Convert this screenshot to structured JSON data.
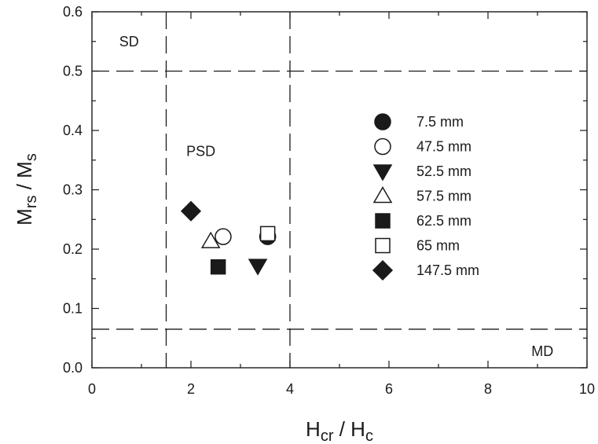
{
  "chart_data": {
    "type": "scatter",
    "title": "",
    "xlabel": {
      "main": "H",
      "sub1": "cr",
      "sep": " / H",
      "sub2": "c"
    },
    "ylabel": {
      "main": "M",
      "sub1": "rs",
      "sep": " / M",
      "sub2": "s"
    },
    "xlim": [
      0,
      10
    ],
    "ylim": [
      0,
      0.6
    ],
    "x_ticks": [
      "0",
      "2",
      "4",
      "6",
      "8",
      "10"
    ],
    "y_ticks": [
      "0.0",
      "0.1",
      "0.2",
      "0.3",
      "0.4",
      "0.5",
      "0.6"
    ],
    "grid": false,
    "legend_position": "right",
    "boundaries": {
      "vertical_x": [
        1.5,
        4
      ],
      "horizontal_y": [
        0.5,
        0.065
      ]
    },
    "regions": [
      {
        "label": "SD",
        "x": 0.75,
        "y": 0.55
      },
      {
        "label": "PSD",
        "x": 2.2,
        "y": 0.365
      },
      {
        "label": "MD",
        "x": 9.1,
        "y": 0.028
      }
    ],
    "series": [
      {
        "name": "7.5 mm",
        "marker": "circle-filled",
        "points": [
          [
            3.55,
            0.221
          ]
        ]
      },
      {
        "name": "47.5 mm",
        "marker": "circle-open",
        "points": [
          [
            2.65,
            0.221
          ]
        ]
      },
      {
        "name": "52.5 mm",
        "marker": "triangle-down-filled",
        "points": [
          [
            3.35,
            0.172
          ]
        ]
      },
      {
        "name": "57.5 mm",
        "marker": "triangle-up-open",
        "points": [
          [
            2.4,
            0.213
          ]
        ]
      },
      {
        "name": "62.5 mm",
        "marker": "square-filled",
        "points": [
          [
            2.55,
            0.17
          ]
        ]
      },
      {
        "name": "65 mm",
        "marker": "square-open",
        "points": [
          [
            3.55,
            0.226
          ]
        ]
      },
      {
        "name": "147.5 mm",
        "marker": "diamond-filled",
        "points": [
          [
            2.0,
            0.264
          ]
        ]
      }
    ]
  }
}
